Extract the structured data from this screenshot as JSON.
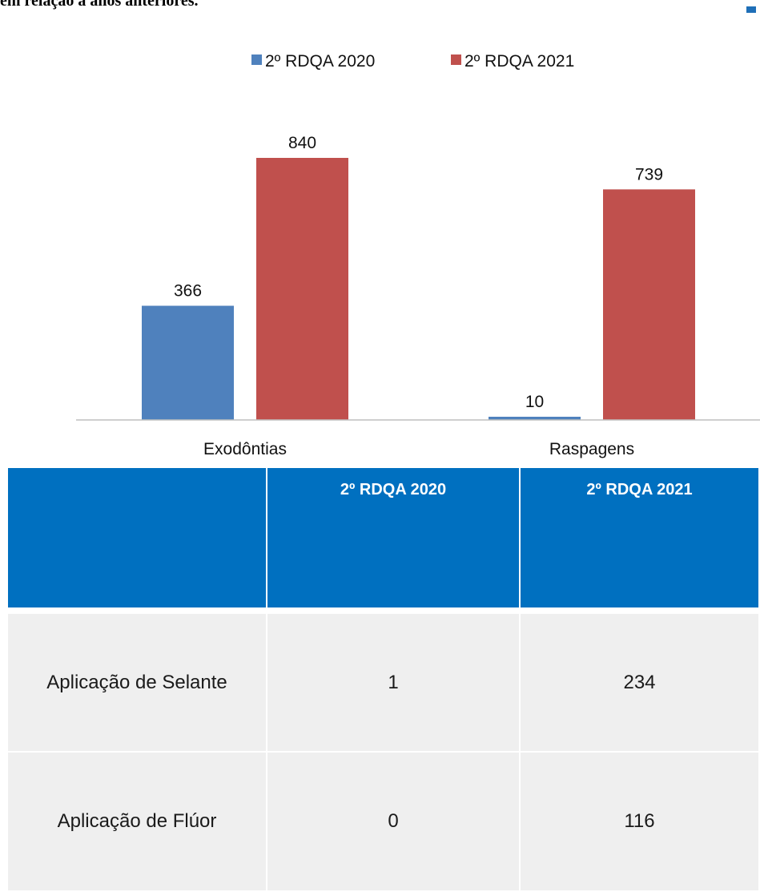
{
  "header": {
    "partial_text": "em relação a anos anteriores."
  },
  "colors": {
    "series_2020": "#4f81bd",
    "series_2021": "#c0504d",
    "table_header_bg": "#0070c0",
    "table_cell_bg": "#efefef"
  },
  "chart_data": {
    "type": "bar",
    "categories": [
      "Exodôntias",
      "Raspagens"
    ],
    "series": [
      {
        "name": "2º RDQA 2020",
        "values": [
          366,
          10
        ],
        "color": "#4f81bd"
      },
      {
        "name": "2º RDQA 2021",
        "values": [
          840,
          739
        ],
        "color": "#c0504d"
      }
    ],
    "data_labels": true,
    "legend": "top-center",
    "grid": false,
    "ylim": [
      0,
      840
    ]
  },
  "table": {
    "headers": [
      "",
      "2º RDQA 2020",
      "2º RDQA 2021"
    ],
    "rows": [
      [
        "Aplicação de Selante",
        "1",
        "234"
      ],
      [
        "Aplicação de Flúor",
        "0",
        "116"
      ]
    ]
  }
}
